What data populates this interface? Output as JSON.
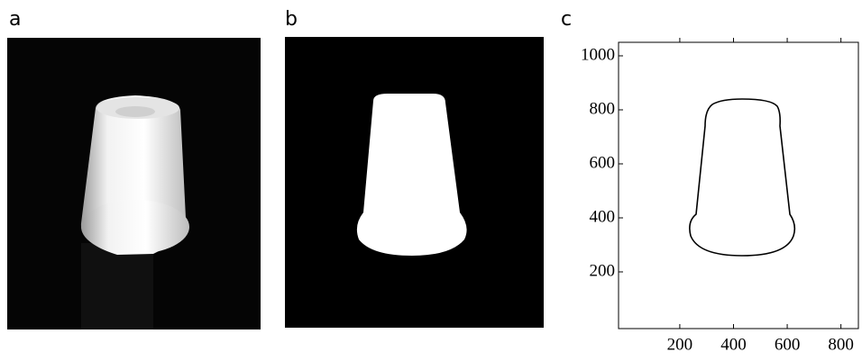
{
  "panels": [
    {
      "label": "a"
    },
    {
      "label": "b"
    },
    {
      "label": "c",
      "xlim": [
        -28,
        865
      ],
      "ylim": [
        -10,
        1050
      ],
      "xticks": [
        200,
        400,
        600,
        800
      ],
      "yticks": [
        200,
        400,
        600,
        800,
        1000
      ]
    }
  ]
}
